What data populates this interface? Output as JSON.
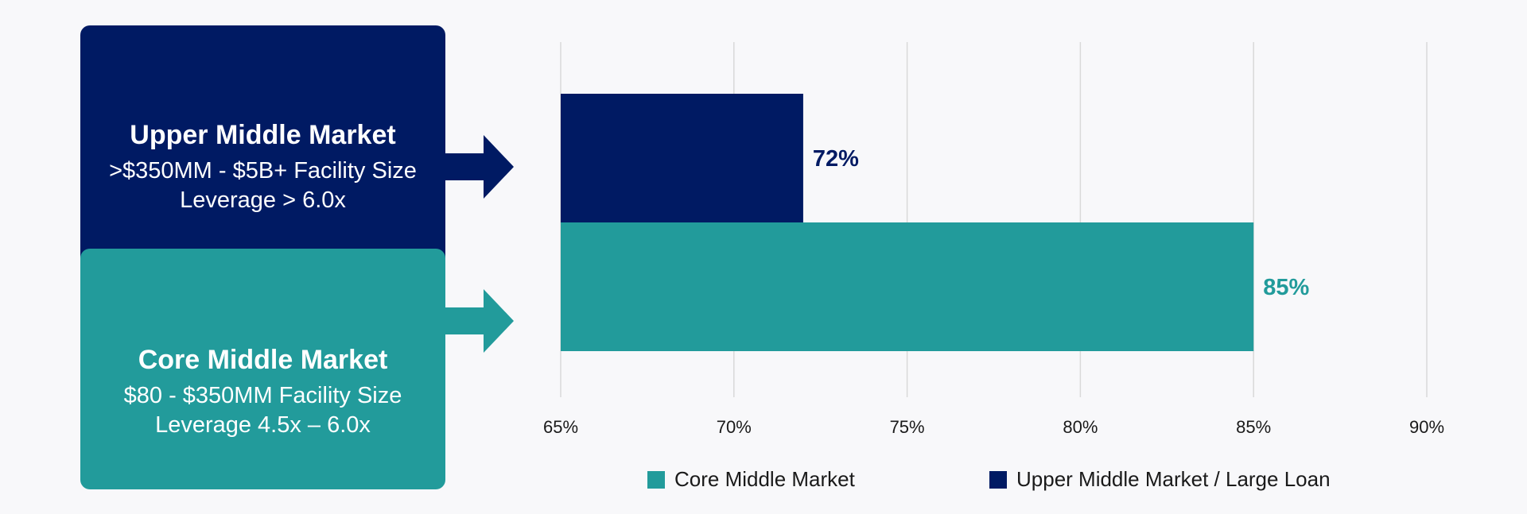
{
  "cards": {
    "upper": {
      "title": "Upper Middle Market",
      "line1": ">$350MM - $5B+ Facility Size",
      "line2": "Leverage > 6.0x",
      "color": "#001a63"
    },
    "core": {
      "title": "Core Middle Market",
      "line1": "$80 - $350MM Facility Size",
      "line2": "Leverage 4.5x – 6.0x",
      "color": "#229b9b"
    }
  },
  "chart_data": {
    "type": "bar",
    "orientation": "horizontal",
    "xlim": [
      65,
      90
    ],
    "xticks": [
      65,
      70,
      75,
      80,
      85,
      90
    ],
    "xtick_labels": [
      "65%",
      "70%",
      "75%",
      "80%",
      "85%",
      "90%"
    ],
    "grid": true,
    "bars": [
      {
        "series": "Upper Middle Market / Large Loan",
        "value": 72,
        "label": "72%",
        "color": "#001a63"
      },
      {
        "series": "Core Middle Market",
        "value": 85,
        "label": "85%",
        "color": "#229b9b"
      }
    ],
    "legend": [
      {
        "name": "Core Middle Market",
        "color": "#229b9b"
      },
      {
        "name": "Upper Middle Market / Large Loan",
        "color": "#001a63"
      }
    ],
    "legend_position": "bottom"
  }
}
